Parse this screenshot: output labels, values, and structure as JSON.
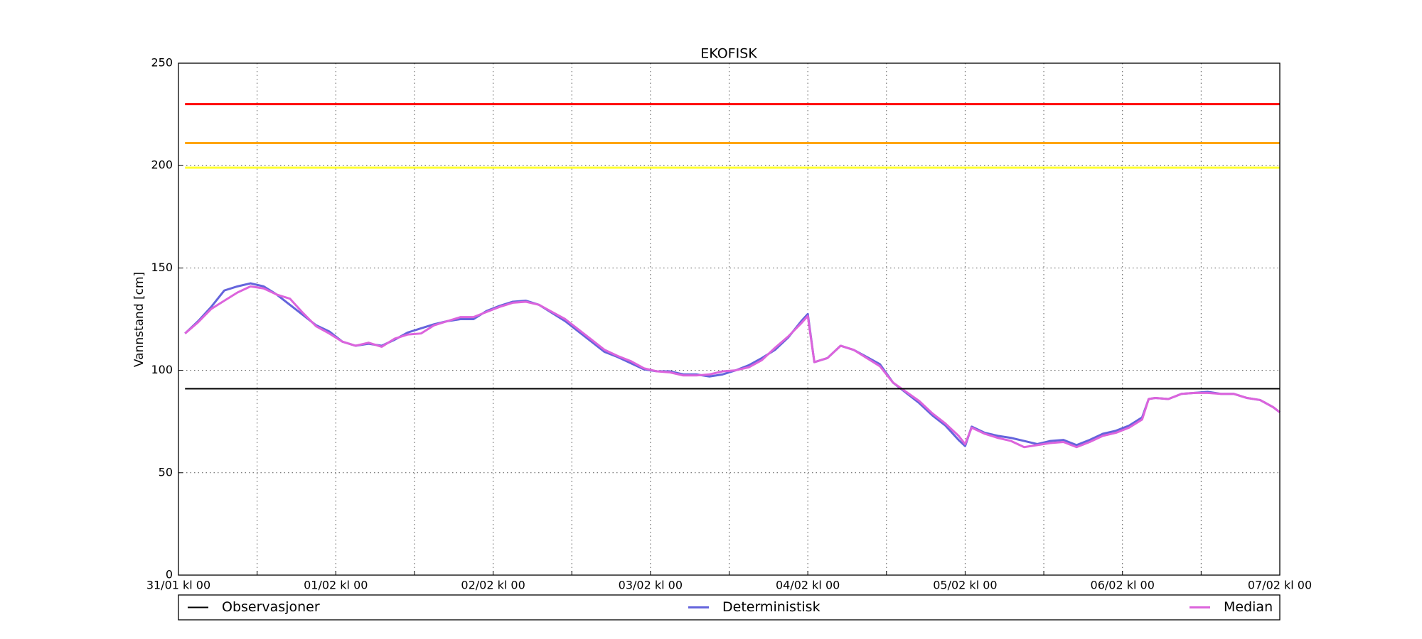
{
  "chart_data": {
    "type": "line",
    "title": "EKOFISK",
    "y_label": "Vannstand [cm]",
    "x": [
      1,
      3,
      5,
      7,
      9,
      11,
      13,
      15,
      17,
      19,
      21,
      23,
      25,
      27,
      29,
      31,
      33,
      35,
      37,
      39,
      41,
      43,
      45,
      47,
      49,
      51,
      53,
      55,
      57,
      59,
      61,
      63,
      65,
      67,
      69,
      71,
      73,
      75,
      77,
      79,
      81,
      83,
      85,
      87,
      89,
      91,
      93,
      95,
      96,
      97,
      99,
      101,
      103,
      105,
      107,
      109,
      111,
      113,
      115,
      117,
      119,
      120,
      121,
      123,
      125,
      127,
      129,
      131,
      133,
      135,
      137,
      139,
      141,
      143,
      145,
      147,
      148,
      149,
      151,
      153,
      155,
      157,
      159,
      161,
      163,
      165,
      167,
      168
    ],
    "series": [
      {
        "name": "Observasjoner",
        "color": "#000000",
        "x": [
          1,
          168
        ],
        "values": [
          91,
          91
        ]
      },
      {
        "name": "Deterministisk",
        "color": "#6464dc",
        "values": [
          118,
          124,
          131,
          139,
          141,
          142.5,
          141,
          137,
          132,
          127,
          122,
          119,
          114,
          112,
          113,
          112,
          115,
          118.5,
          120.5,
          122.5,
          124,
          125,
          125,
          129,
          131.5,
          133.5,
          134,
          132,
          128,
          124,
          119,
          114,
          109,
          106.5,
          103.5,
          100.5,
          99.5,
          99.5,
          98,
          98,
          97,
          98,
          100,
          102.5,
          106,
          110,
          116,
          124,
          127.5,
          104,
          106,
          112,
          110,
          106.5,
          103,
          94,
          89,
          84,
          78,
          73,
          66,
          63,
          72.5,
          69.5,
          68,
          67,
          65.5,
          64,
          65.5,
          66,
          63.5,
          66,
          69,
          70.5,
          73,
          77,
          86,
          86.5,
          86,
          88.5,
          89,
          89.5,
          88.5,
          88.5,
          86.5,
          85.5,
          82,
          79.5
        ]
      },
      {
        "name": "Median",
        "color": "#dc64dc",
        "values": [
          118,
          123.5,
          130,
          134,
          138,
          141,
          140,
          137,
          135,
          128,
          121.5,
          118,
          114,
          112,
          113.5,
          111.5,
          115.5,
          117.5,
          118,
          122,
          124,
          126,
          126,
          128.5,
          131,
          133,
          133.5,
          132,
          128.5,
          125,
          120,
          115,
          110,
          107,
          104.5,
          101,
          99.5,
          99,
          97.5,
          97.5,
          98,
          99.5,
          100,
          101.5,
          105,
          111,
          116.5,
          123,
          126.5,
          104,
          106,
          112,
          110,
          106,
          102,
          94,
          89.5,
          85,
          79,
          74,
          68,
          64,
          72,
          69,
          67,
          65.5,
          62.5,
          63.5,
          64.5,
          65,
          62.5,
          65,
          68,
          69.5,
          72,
          76,
          86,
          86.5,
          86,
          88.5,
          89,
          89,
          88.5,
          88.5,
          86.5,
          85.5,
          82,
          79.5
        ]
      }
    ],
    "threshold_lines": [
      {
        "value": 230,
        "color": "#ff0000"
      },
      {
        "value": 211,
        "color": "#ffa500"
      },
      {
        "value": 199,
        "color": "#ffff33"
      }
    ],
    "xlim": [
      0,
      168
    ],
    "xticks": [
      {
        "value": 0,
        "label": "31/01 kl 00"
      },
      {
        "value": 24,
        "label": "01/02 kl 00"
      },
      {
        "value": 48,
        "label": "02/02 kl 00"
      },
      {
        "value": 72,
        "label": "03/02 kl 00"
      },
      {
        "value": 96,
        "label": "04/02 kl 00"
      },
      {
        "value": 120,
        "label": "05/02 kl 00"
      },
      {
        "value": 144,
        "label": "06/02 kl 00"
      },
      {
        "value": 168,
        "label": "07/02 kl 00"
      }
    ],
    "xminor_ticks": [
      12,
      36,
      60,
      84,
      108,
      132,
      156
    ],
    "ylim": [
      0,
      250
    ],
    "yticks": [
      0,
      50,
      100,
      150,
      200,
      250
    ],
    "grid": true,
    "legend": "bottom"
  }
}
